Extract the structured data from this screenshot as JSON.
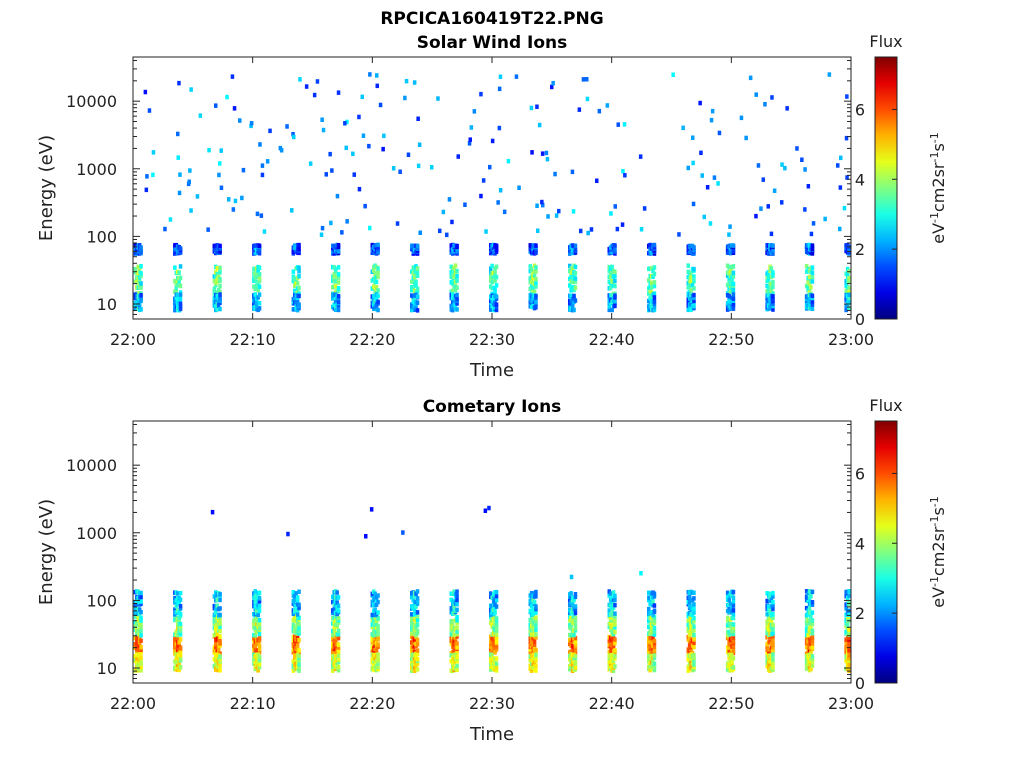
{
  "figure_title": "RPCICA160419T22.PNG",
  "chart_data": [
    {
      "type": "heatmap",
      "title": "Solar Wind Ions",
      "xlabel": "Time",
      "ylabel": "Energy (eV)",
      "x_ticks": [
        "22:00",
        "22:10",
        "22:20",
        "22:30",
        "22:40",
        "22:50",
        "23:00"
      ],
      "xlim": [
        "22:00",
        "23:00"
      ],
      "y_ticks": [
        "10",
        "100",
        "1000",
        "10000"
      ],
      "y_scale": "log",
      "ylim": [
        6,
        45000
      ],
      "colorbar": {
        "title": "Flux",
        "label": "eV-1cm-2sr-1s-1",
        "ticks": [
          0,
          2,
          4,
          6
        ],
        "range": [
          0,
          7.5
        ]
      },
      "colormap": "jet",
      "sweep_start_minutes": [
        0.0,
        3.3,
        6.6,
        9.9,
        13.2,
        16.5,
        19.8,
        23.1,
        26.4,
        29.7,
        33.0,
        36.3,
        39.6,
        42.9,
        46.2,
        49.5,
        52.8,
        56.1,
        59.4
      ],
      "bands": [
        {
          "e_min": 14,
          "e_max": 38,
          "flux": 3.8
        },
        {
          "e_min": 8,
          "e_max": 14,
          "flux": 2.6
        },
        {
          "e_min": 55,
          "e_max": 75,
          "flux": 2.0
        }
      ],
      "sparse_points": {
        "e_min": 100,
        "e_max": 25000,
        "flux_range": [
          1.0,
          2.8
        ],
        "count": 220
      }
    },
    {
      "type": "heatmap",
      "title": "Cometary Ions",
      "xlabel": "Time",
      "ylabel": "Energy (eV)",
      "x_ticks": [
        "22:00",
        "22:10",
        "22:20",
        "22:30",
        "22:40",
        "22:50",
        "23:00"
      ],
      "xlim": [
        "22:00",
        "23:00"
      ],
      "y_ticks": [
        "10",
        "100",
        "1000",
        "10000"
      ],
      "y_scale": "log",
      "ylim": [
        6,
        45000
      ],
      "colorbar": {
        "title": "Flux",
        "label": "eV-1cm-2sr-1s-1",
        "ticks": [
          0,
          2,
          4,
          6
        ],
        "range": [
          0,
          7.5
        ]
      },
      "colormap": "jet",
      "sweep_start_minutes": [
        0.0,
        3.3,
        6.6,
        9.9,
        13.2,
        16.5,
        19.8,
        23.1,
        26.4,
        29.7,
        33.0,
        36.3,
        39.6,
        42.9,
        46.2,
        49.5,
        52.8,
        56.1,
        59.4
      ],
      "bands": [
        {
          "e_min": 16,
          "e_max": 30,
          "flux": 6.0
        },
        {
          "e_min": 9,
          "e_max": 16,
          "flux": 4.8
        },
        {
          "e_min": 30,
          "e_max": 60,
          "flux": 4.2
        },
        {
          "e_min": 60,
          "e_max": 140,
          "flux": 2.8
        }
      ],
      "sparse_points": [
        {
          "t": 6.5,
          "e": 2000,
          "flux": 1.0
        },
        {
          "t": 12.8,
          "e": 950,
          "flux": 1.2
        },
        {
          "t": 19.3,
          "e": 880,
          "flux": 1.0
        },
        {
          "t": 19.8,
          "e": 2200,
          "flux": 1.0
        },
        {
          "t": 22.4,
          "e": 1000,
          "flux": 1.6
        },
        {
          "t": 29.3,
          "e": 2100,
          "flux": 1.0
        },
        {
          "t": 29.6,
          "e": 2300,
          "flux": 1.2
        },
        {
          "t": 36.5,
          "e": 220,
          "flux": 2.4
        },
        {
          "t": 42.3,
          "e": 250,
          "flux": 2.8
        }
      ]
    }
  ]
}
